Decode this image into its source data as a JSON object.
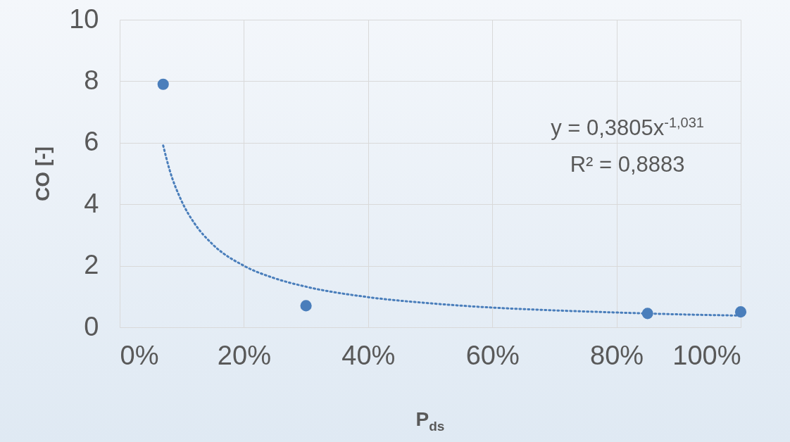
{
  "chart_data": {
    "type": "scatter",
    "xlabel": "P$_{ds}$",
    "ylabel": "CO [-]",
    "series": [
      {
        "color": "#4a7ebb",
        "x": [
          0.07,
          0.3,
          0.85,
          1.0
        ],
        "values": [
          7.9,
          0.7,
          0.45,
          0.5
        ],
        "marker": "circle"
      },
      {
        "type": "line",
        "color": "#4a7ebb",
        "line_style": "dotted",
        "x": [
          0.07,
          0.08,
          0.1,
          0.12,
          0.15,
          0.2,
          0.25,
          0.3,
          0.4,
          0.5,
          0.6,
          0.7,
          0.8,
          0.9,
          1.0
        ],
        "values": [
          5.91,
          5.14,
          4.09,
          3.39,
          2.69,
          2.0,
          1.59,
          1.32,
          0.98,
          0.78,
          0.64,
          0.55,
          0.48,
          0.42,
          0.38
        ]
      }
    ],
    "xlim": [
      0,
      1
    ],
    "xticks": [
      {
        "value": 0,
        "label": "0%"
      },
      {
        "value": 0.2,
        "label": "20%"
      },
      {
        "value": 0.4,
        "label": "40%"
      },
      {
        "value": 0.6,
        "label": "60%"
      },
      {
        "value": 0.8,
        "label": "80%"
      },
      {
        "value": 1,
        "label": "100%"
      }
    ],
    "ylim": [
      0,
      10
    ],
    "yticks": [
      0,
      2,
      4,
      6,
      8,
      10
    ],
    "grid": true,
    "annotations": [
      "y = 0,3805x$^{-1,031}$",
      "R² = 0,8883"
    ]
  }
}
